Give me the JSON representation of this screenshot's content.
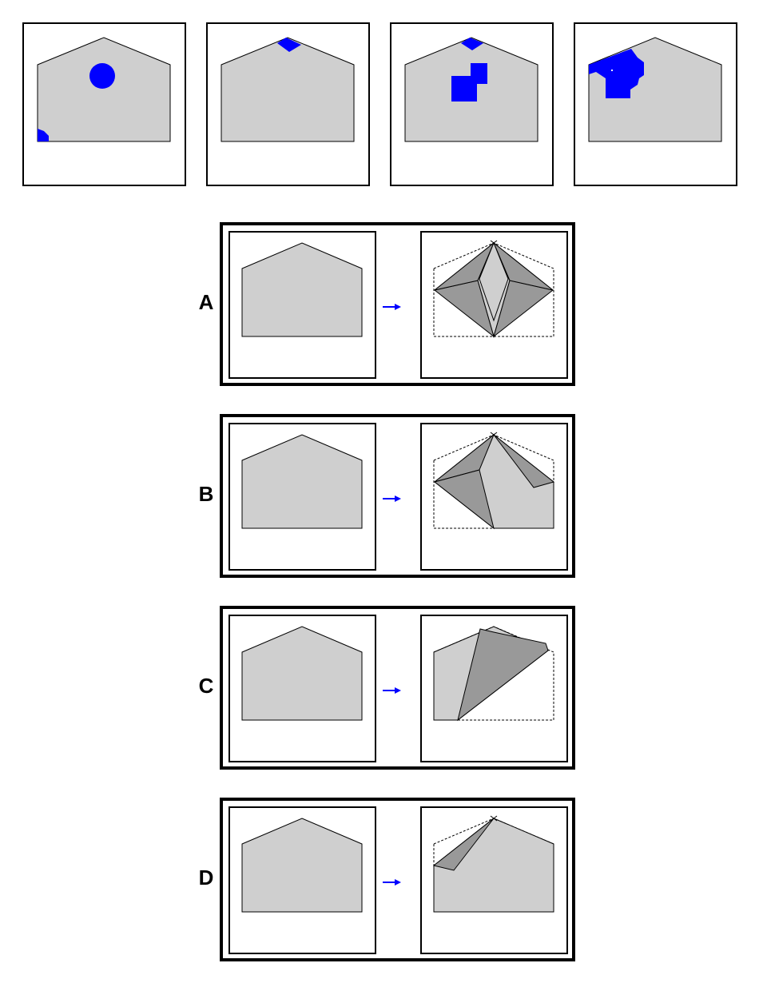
{
  "colors": {
    "paper": "#cfcfcf",
    "fold": "#999999",
    "hole": "#0000ff",
    "outline": "#000000",
    "arrow": "#0000ff"
  },
  "question_panels": [
    {
      "id": "q1",
      "marks": [
        "circle",
        "corner-notch"
      ]
    },
    {
      "id": "q2",
      "marks": [
        "top-diamond"
      ]
    },
    {
      "id": "q3",
      "marks": [
        "top-diamond",
        "stepped-squares"
      ]
    },
    {
      "id": "q4",
      "marks": [
        "blob"
      ]
    }
  ],
  "options": [
    {
      "label": "A",
      "fold": "four-fold-star"
    },
    {
      "label": "B",
      "fold": "two-fold"
    },
    {
      "label": "C",
      "fold": "large-diagonal-fold"
    },
    {
      "label": "D",
      "fold": "small-corner-fold"
    }
  ],
  "icons": {
    "arrow": "right-arrow-icon"
  }
}
